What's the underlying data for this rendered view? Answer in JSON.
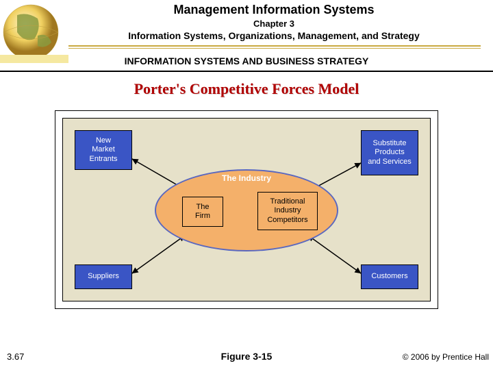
{
  "header": {
    "main_title": "Management Information Systems",
    "chapter": "Chapter 3",
    "subtitle": "Information Systems, Organizations, Management, and Strategy",
    "section": "INFORMATION SYSTEMS AND BUSINESS STRATEGY",
    "line_color_gold": "#c9a940"
  },
  "slide_title": "Porter's Competitive Forces Model",
  "slide_title_color": "#b00000",
  "diagram": {
    "type": "flowchart",
    "canvas_bg": "#e6e1c9",
    "box_fill": "#3a55c5",
    "box_text_color": "#ffffff",
    "oval_fill": "#f4b06a",
    "oval_border": "#5a68c0",
    "inner_box_fill": "#f4b06a",
    "boxes": {
      "top_left": "New\nMarket\nEntrants",
      "top_right": "Substitute\nProducts\nand Services",
      "bottom_left": "Suppliers",
      "bottom_right": "Customers"
    },
    "oval_label": "The Industry",
    "inner_left": "The\nFirm",
    "inner_right": "Traditional\nIndustry\nCompetitors"
  },
  "footer": {
    "figure": "Figure 3-15",
    "page": "3.67",
    "copyright": "© 2006 by Prentice Hall"
  }
}
